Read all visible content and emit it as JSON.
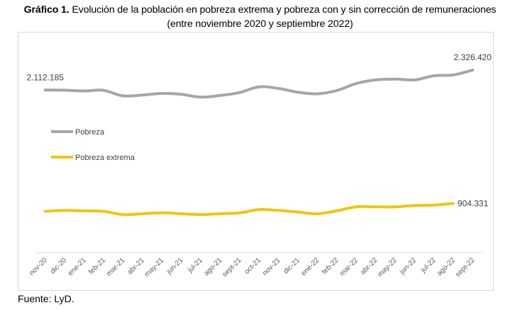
{
  "header": {
    "title_bold": "Gráfico 1.",
    "title_line1": " Evolución de la población en pobreza extrema y pobreza con y sin corrección de remuneraciones",
    "title_line2": "(entre noviembre 2020 y septiembre 2022)"
  },
  "footer": {
    "source": "Fuente: LyD."
  },
  "chart_data": {
    "type": "line",
    "title": "Gráfico 1. Evolución de la población en pobreza extrema y pobreza con y sin corrección de remuneraciones (entre noviembre 2020 y septiembre 2022)",
    "xlabel": "",
    "ylabel": "",
    "grid": false,
    "legend_position": "left-inside",
    "categories": [
      "nov-20",
      "dic-20",
      "ene-21",
      "feb-21",
      "mar-21",
      "abr-21",
      "may-21",
      "jun-21",
      "jul-21",
      "ago-21",
      "sept-21",
      "oct-21",
      "nov-21",
      "dic-21",
      "ene-22",
      "feb-22",
      "mar-22",
      "abr-22",
      "may-22",
      "jun-22",
      "jul-22",
      "ago-22",
      "sept-22"
    ],
    "series": [
      {
        "name": "Pobreza",
        "color": "#a6a6a6",
        "values": [
          2112185,
          2112000,
          2103000,
          2110000,
          2051000,
          2060000,
          2077000,
          2068000,
          2038000,
          2055000,
          2086000,
          2147000,
          2130000,
          2090000,
          2073000,
          2108000,
          2182000,
          2221000,
          2230000,
          2221000,
          2265000,
          2274000,
          2326420
        ],
        "labels": [
          {
            "index": 0,
            "text": "2.112.185",
            "position": "above"
          },
          {
            "index": 22,
            "text": "2.326.420",
            "position": "above"
          }
        ]
      },
      {
        "name": "Pobreza extrema",
        "color": "#f2c40e",
        "values": [
          821000,
          830000,
          826000,
          821000,
          786000,
          795000,
          804000,
          795000,
          786000,
          795000,
          804000,
          839000,
          830000,
          813000,
          795000,
          826000,
          869000,
          869000,
          869000,
          882000,
          887000,
          904331,
          null
        ],
        "labels": [
          {
            "index": 21,
            "text": "904.331",
            "position": "right"
          }
        ]
      }
    ],
    "ylim": [
      380000,
      2620000
    ]
  }
}
